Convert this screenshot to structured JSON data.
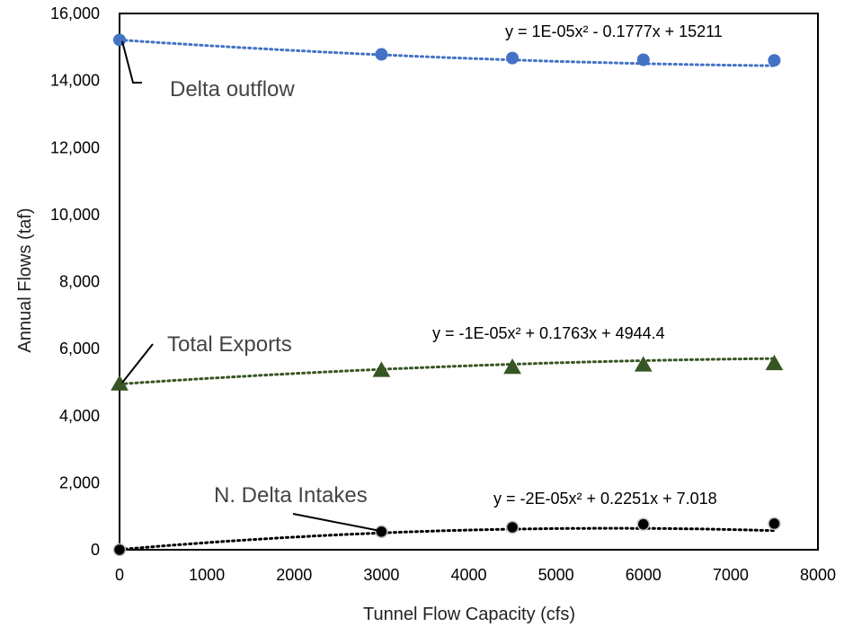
{
  "chart_data": {
    "type": "scatter",
    "title": "",
    "xlabel": "Tunnel Flow Capacity (cfs)",
    "ylabel": "Annual Flows (taf)",
    "xlim": [
      0,
      8000
    ],
    "ylim": [
      0,
      16000
    ],
    "x_ticks": [
      "0",
      "1000",
      "2000",
      "3000",
      "4000",
      "5000",
      "6000",
      "7000",
      "8000"
    ],
    "y_ticks": [
      "0",
      "2,000",
      "4,000",
      "6,000",
      "8,000",
      "10,000",
      "12,000",
      "14,000",
      "16,000"
    ],
    "grid": false,
    "legend": "none",
    "series": [
      {
        "name": "Delta outflow",
        "marker": "circle",
        "color": "#4472C4",
        "x": [
          0,
          3000,
          4500,
          6000,
          7500
        ],
        "y": [
          15211,
          14780,
          14670,
          14620,
          14600
        ],
        "trendline": {
          "a": 1e-05,
          "b": -0.1777,
          "c": 15211,
          "color": "#4472C4",
          "equation": "y = 1E-05x² - 0.1777x + 15211"
        }
      },
      {
        "name": "Total Exports",
        "marker": "triangle",
        "color": "#375623",
        "x": [
          0,
          3000,
          4500,
          6000,
          7500
        ],
        "y": [
          4944,
          5350,
          5440,
          5510,
          5550
        ],
        "trendline": {
          "a": -1e-05,
          "b": 0.1763,
          "c": 4944.4,
          "color": "#375623",
          "equation": "y = -1E-05x² + 0.1763x + 4944.4"
        }
      },
      {
        "name": "N. Delta Intakes",
        "marker": "circle",
        "color": "#000000",
        "x": [
          0,
          3000,
          4500,
          6000,
          7500
        ],
        "y": [
          0,
          540,
          670,
          760,
          780
        ],
        "trendline": {
          "a": -2e-05,
          "b": 0.2251,
          "c": 7.018,
          "color": "#000000",
          "equation": "y = -2E-05x² + 0.2251x + 7.018"
        }
      }
    ]
  }
}
